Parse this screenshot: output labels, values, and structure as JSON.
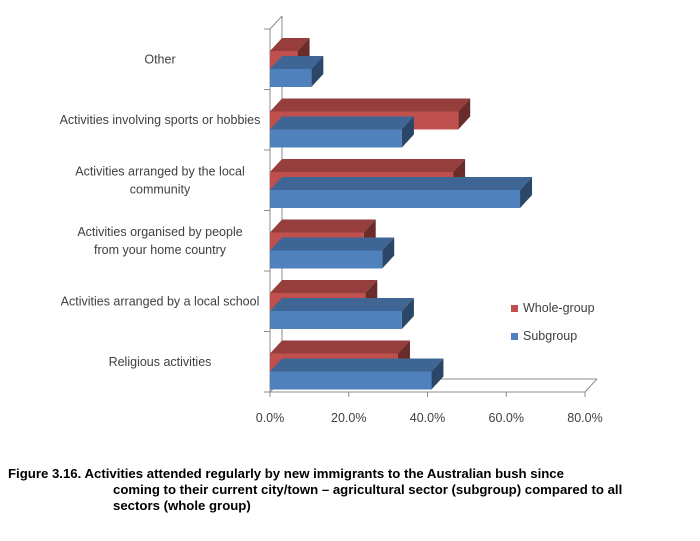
{
  "chart_data": {
    "type": "bar",
    "orientation": "horizontal",
    "style": "3d-clustered",
    "categories": [
      "Other",
      "Activities involving sports or hobbies",
      "Activities arranged by the local community",
      "Activities organised by people from your home country",
      "Activities arranged by a local school",
      "Religious activities"
    ],
    "series": [
      {
        "name": "Whole-group",
        "color": "#C0504D",
        "values": [
          7,
          47.8,
          46.5,
          23.8,
          24.2,
          32.5
        ]
      },
      {
        "name": "Subgroup",
        "color": "#4F81BD",
        "values": [
          10.5,
          33.5,
          63.5,
          28.5,
          33.5,
          41
        ]
      }
    ],
    "xlim": [
      0,
      80
    ],
    "x_ticks": [
      "0.0%",
      "20.0%",
      "40.0%",
      "60.0%",
      "80.0%"
    ],
    "grid": false,
    "legend_position": "right"
  },
  "caption": {
    "line1": "Figure 3.16. Activities attended regularly by new immigrants to the Australian bush since",
    "line2": "coming to their current city/town – agricultural sector (subgroup) compared to all",
    "line3": "sectors (whole group)"
  }
}
